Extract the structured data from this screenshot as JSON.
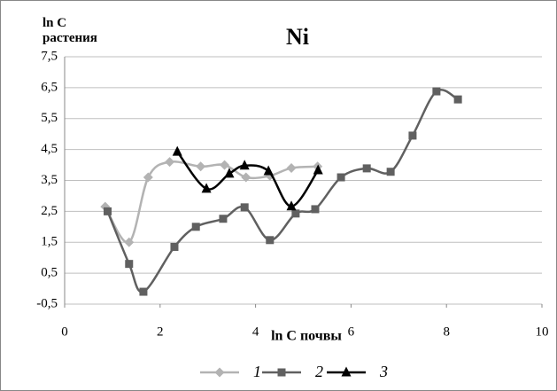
{
  "chart_data": {
    "type": "line",
    "title": "Ni",
    "y_label": "ln C растения",
    "x_label": "ln C почвы",
    "xlim": [
      0,
      10
    ],
    "xticks": [
      0,
      2,
      4,
      6,
      8,
      10
    ],
    "ylim": [
      -0.5,
      7.5
    ],
    "yticks": [
      {
        "value": -0.5,
        "label": "-0,5"
      },
      {
        "value": 0.5,
        "label": "0,5"
      },
      {
        "value": 1.5,
        "label": "1,5"
      },
      {
        "value": 2.5,
        "label": "2,5"
      },
      {
        "value": 3.5,
        "label": "3,5"
      },
      {
        "value": 4.5,
        "label": "4,5"
      },
      {
        "value": 5.5,
        "label": "5,5"
      },
      {
        "value": 6.5,
        "label": "6,5"
      },
      {
        "value": 7.5,
        "label": "7,5"
      }
    ],
    "grid": true,
    "series": [
      {
        "name": "1",
        "color": "#b3b3b3",
        "marker": "diamond",
        "x": [
          0.85,
          1.35,
          1.75,
          2.2,
          2.85,
          3.35,
          3.8,
          4.3,
          4.75,
          5.3
        ],
        "values": [
          2.65,
          1.5,
          3.6,
          4.1,
          3.95,
          4.0,
          3.6,
          3.65,
          3.9,
          3.95
        ]
      },
      {
        "name": "2",
        "color": "#606060",
        "marker": "square",
        "x": [
          0.9,
          1.35,
          1.65,
          2.3,
          2.75,
          3.32,
          3.77,
          4.3,
          4.84,
          5.25,
          5.79,
          6.33,
          6.83,
          7.29,
          7.79,
          8.24
        ],
        "values": [
          2.5,
          0.8,
          -0.1,
          1.35,
          2.0,
          2.26,
          2.63,
          1.57,
          2.43,
          2.57,
          3.6,
          3.89,
          3.78,
          4.95,
          6.38,
          6.12
        ]
      },
      {
        "name": "3",
        "color": "#000000",
        "marker": "triangle",
        "x": [
          2.36,
          2.97,
          3.45,
          3.77,
          4.27,
          4.75,
          5.31
        ],
        "values": [
          4.43,
          3.23,
          3.72,
          3.98,
          3.8,
          2.66,
          3.83
        ]
      }
    ]
  }
}
